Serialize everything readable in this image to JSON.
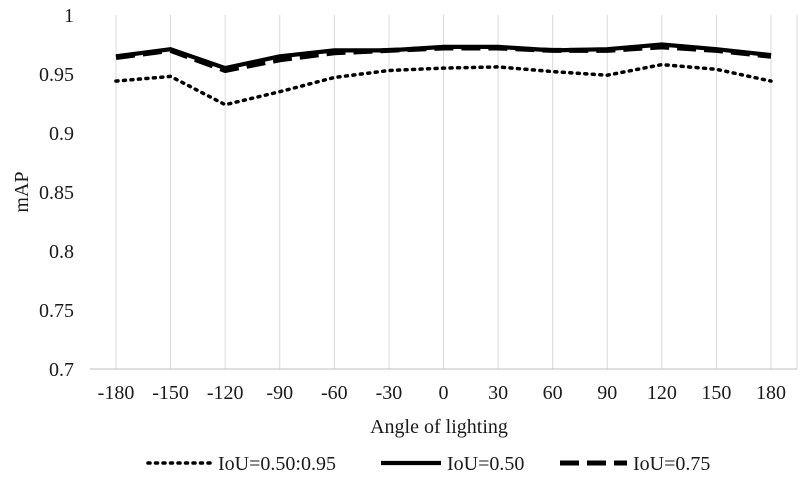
{
  "chart_data": {
    "type": "line",
    "title": "",
    "xlabel": "Angle of lighting",
    "ylabel": "mAP",
    "categories": [
      "-180",
      "-150",
      "-120",
      "-90",
      "-60",
      "-30",
      "0",
      "30",
      "60",
      "90",
      "120",
      "150",
      "180"
    ],
    "ylim": [
      0.7,
      1
    ],
    "yticks": [
      "0.7",
      "0.75",
      "0.8",
      "0.85",
      "0.9",
      "0.95",
      "1"
    ],
    "grid": "vertical",
    "legend_position": "bottom",
    "series": [
      {
        "name": "IoU=0.50:0.95",
        "style": "dotted",
        "values": [
          0.944,
          0.948,
          0.924,
          0.935,
          0.947,
          0.953,
          0.955,
          0.956,
          0.952,
          0.949,
          0.958,
          0.954,
          0.944
        ]
      },
      {
        "name": "IoU=0.50",
        "style": "solid",
        "values": [
          0.965,
          0.971,
          0.955,
          0.965,
          0.97,
          0.97,
          0.973,
          0.973,
          0.97,
          0.971,
          0.975,
          0.971,
          0.966
        ]
      },
      {
        "name": "IoU=0.75",
        "style": "dashed",
        "values": [
          0.964,
          0.97,
          0.953,
          0.962,
          0.968,
          0.97,
          0.972,
          0.972,
          0.97,
          0.97,
          0.973,
          0.97,
          0.965
        ]
      }
    ],
    "colors": {
      "lines": "#000000",
      "grid": "#d9d9d9",
      "axis": "#bfbfbf"
    }
  }
}
